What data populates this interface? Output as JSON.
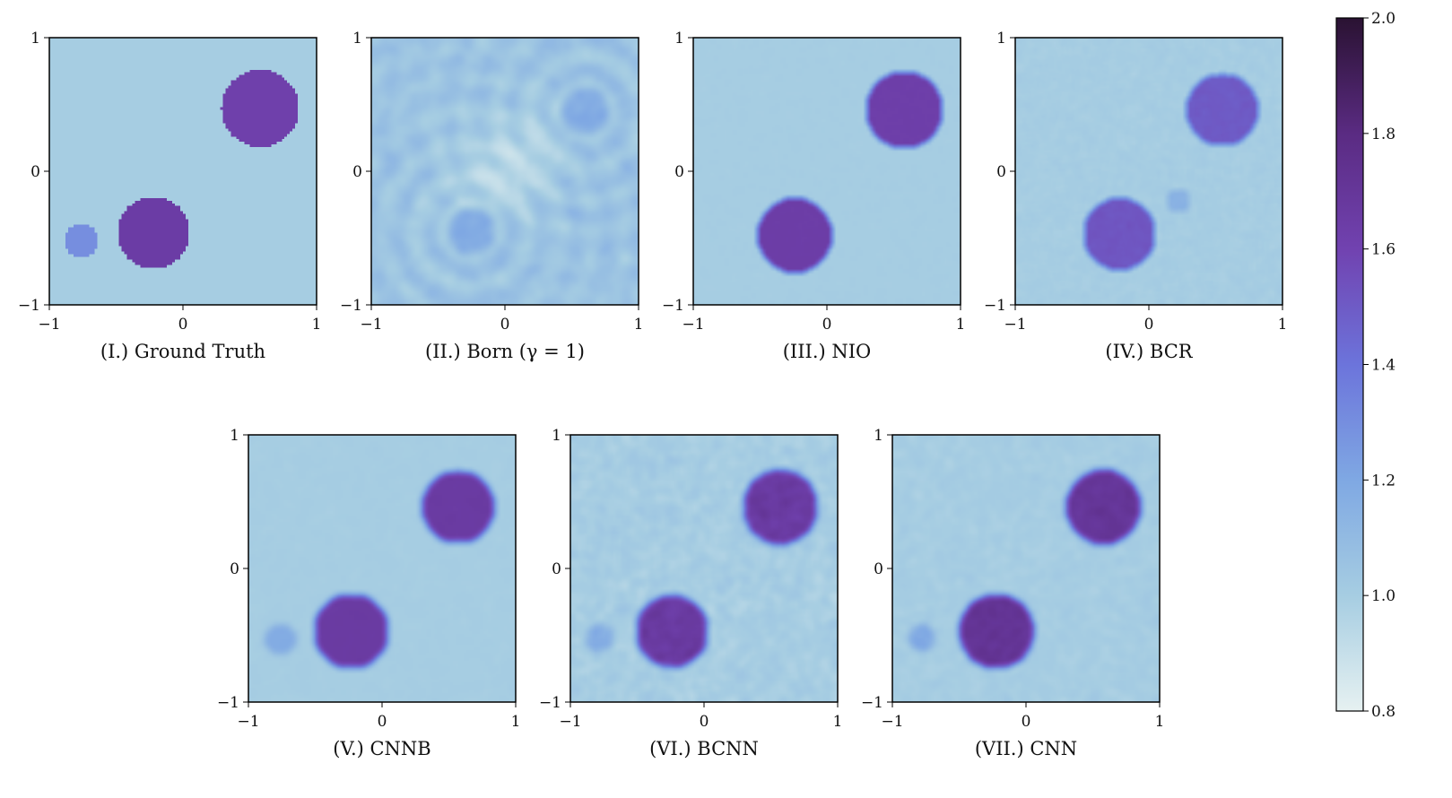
{
  "chart_data": [
    {
      "type": "heatmap",
      "panel": "I",
      "caption": "(I.) Ground Truth",
      "x_ticks": [
        "−1",
        "0",
        "1"
      ],
      "y_ticks": [
        "1",
        "0",
        "−1"
      ],
      "xlim": [
        -1,
        1
      ],
      "ylim": [
        -1,
        1
      ],
      "background_value": 1.0,
      "noise": 0,
      "blur": 0,
      "objects": [
        {
          "cx": 0.58,
          "cy": 0.47,
          "r": 0.29,
          "value": 1.62
        },
        {
          "cx": -0.22,
          "cy": -0.46,
          "r": 0.27,
          "value": 1.65
        },
        {
          "cx": -0.76,
          "cy": -0.52,
          "r": 0.13,
          "value": 1.3
        }
      ]
    },
    {
      "type": "heatmap",
      "panel": "II",
      "caption": "(II.) Born (γ = 1)",
      "x_ticks": [
        "−1",
        "0",
        "1"
      ],
      "y_ticks": [
        "1",
        "0",
        "−1"
      ],
      "xlim": [
        -1,
        1
      ],
      "ylim": [
        -1,
        1
      ],
      "background_value": 1.05,
      "noise": 0.1,
      "blur": 1.4,
      "ripple": true,
      "objects": [
        {
          "cx": 0.6,
          "cy": 0.45,
          "r": 0.18,
          "value": 1.18
        },
        {
          "cx": -0.25,
          "cy": -0.45,
          "r": 0.18,
          "value": 1.18
        }
      ]
    },
    {
      "type": "heatmap",
      "panel": "III",
      "caption": "(III.) NIO",
      "x_ticks": [
        "−1",
        "0",
        "1"
      ],
      "y_ticks": [
        "1",
        "0",
        "−1"
      ],
      "xlim": [
        -1,
        1
      ],
      "ylim": [
        -1,
        1
      ],
      "background_value": 1.0,
      "noise": 0.01,
      "blur": 0.3,
      "objects": [
        {
          "cx": 0.58,
          "cy": 0.46,
          "r": 0.29,
          "value": 1.63
        },
        {
          "cx": -0.24,
          "cy": -0.48,
          "r": 0.28,
          "value": 1.64
        }
      ]
    },
    {
      "type": "heatmap",
      "panel": "IV",
      "caption": "(IV.) BCR",
      "x_ticks": [
        "−1",
        "0",
        "1"
      ],
      "y_ticks": [
        "1",
        "0",
        "−1"
      ],
      "xlim": [
        -1,
        1
      ],
      "ylim": [
        -1,
        1
      ],
      "background_value": 1.0,
      "noise": 0.03,
      "blur": 0.35,
      "objects": [
        {
          "cx": 0.55,
          "cy": 0.46,
          "r": 0.27,
          "value": 1.5
        },
        {
          "cx": -0.22,
          "cy": -0.47,
          "r": 0.27,
          "value": 1.52
        },
        {
          "cx": 0.22,
          "cy": -0.22,
          "r": 0.09,
          "value": 1.15
        }
      ]
    },
    {
      "type": "heatmap",
      "panel": "V",
      "caption": "(V.) CNNB",
      "x_ticks": [
        "−1",
        "0",
        "1"
      ],
      "y_ticks": [
        "1",
        "0",
        "−1"
      ],
      "xlim": [
        -1,
        1
      ],
      "ylim": [
        -1,
        1
      ],
      "background_value": 1.0,
      "noise": 0.02,
      "blur": 1.2,
      "objects": [
        {
          "cx": 0.57,
          "cy": 0.46,
          "r": 0.27,
          "value": 1.66
        },
        {
          "cx": -0.23,
          "cy": -0.47,
          "r": 0.28,
          "value": 1.66
        },
        {
          "cx": -0.76,
          "cy": -0.53,
          "r": 0.12,
          "value": 1.18
        }
      ]
    },
    {
      "type": "heatmap",
      "panel": "VI",
      "caption": "(VI.) BCNN",
      "x_ticks": [
        "−1",
        "0",
        "1"
      ],
      "y_ticks": [
        "1",
        "0",
        "−1"
      ],
      "xlim": [
        -1,
        1
      ],
      "ylim": [
        -1,
        1
      ],
      "background_value": 1.0,
      "noise": 0.1,
      "blur": 0.9,
      "objects": [
        {
          "cx": 0.57,
          "cy": 0.46,
          "r": 0.28,
          "value": 1.66
        },
        {
          "cx": -0.24,
          "cy": -0.47,
          "r": 0.27,
          "value": 1.66
        },
        {
          "cx": -0.78,
          "cy": -0.52,
          "r": 0.11,
          "value": 1.16
        }
      ]
    },
    {
      "type": "heatmap",
      "panel": "VII",
      "caption": "(VII.) CNN",
      "x_ticks": [
        "−1",
        "0",
        "1"
      ],
      "y_ticks": [
        "1",
        "0",
        "−1"
      ],
      "xlim": [
        -1,
        1
      ],
      "ylim": [
        -1,
        1
      ],
      "background_value": 1.0,
      "noise": 0.06,
      "blur": 0.9,
      "objects": [
        {
          "cx": 0.58,
          "cy": 0.46,
          "r": 0.28,
          "value": 1.7
        },
        {
          "cx": -0.22,
          "cy": -0.47,
          "r": 0.28,
          "value": 1.72
        },
        {
          "cx": -0.78,
          "cy": -0.52,
          "r": 0.1,
          "value": 1.2
        }
      ]
    }
  ],
  "colorbar": {
    "min": 0.8,
    "max": 2.0,
    "ticks": [
      "0.8",
      "1.0",
      "1.2",
      "1.4",
      "1.6",
      "1.8",
      "2.0"
    ],
    "colormap_stops": [
      {
        "v": 0.8,
        "color": "#e6f1f1"
      },
      {
        "v": 1.0,
        "color": "#a6cde2"
      },
      {
        "v": 1.2,
        "color": "#7fa8e3"
      },
      {
        "v": 1.4,
        "color": "#6c74db"
      },
      {
        "v": 1.6,
        "color": "#7142b0"
      },
      {
        "v": 1.8,
        "color": "#5a2b82"
      },
      {
        "v": 2.0,
        "color": "#2a1232"
      }
    ]
  }
}
